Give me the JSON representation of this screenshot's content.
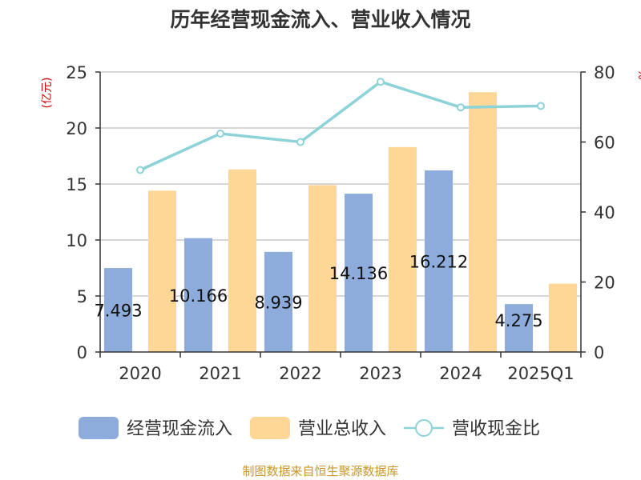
{
  "chart_data": {
    "type": "bar",
    "title": "历年经营现金流入、营业收入情况",
    "left_axis_unit": "(亿元)",
    "right_axis_unit": "%",
    "categories": [
      "2020",
      "2021",
      "2022",
      "2023",
      "2024",
      "2025Q1"
    ],
    "left_axis": {
      "min": 0,
      "max": 25,
      "ticks": [
        0,
        5,
        10,
        15,
        20,
        25
      ]
    },
    "right_axis": {
      "min": 0,
      "max": 80,
      "ticks": [
        0,
        20,
        40,
        60,
        80
      ]
    },
    "series": [
      {
        "name": "经营现金流入",
        "kind": "bar",
        "axis": "left",
        "color": "#8eacdb",
        "values": [
          7.493,
          10.166,
          8.939,
          14.136,
          16.212,
          4.275
        ],
        "labels": [
          "7.493",
          "10.166",
          "8.939",
          "14.136",
          "16.212",
          "4.275"
        ]
      },
      {
        "name": "营业总收入",
        "kind": "bar",
        "axis": "left",
        "color": "#fed797",
        "values": [
          14.4,
          16.3,
          14.9,
          18.3,
          23.2,
          6.1
        ]
      },
      {
        "name": "营收现金比",
        "kind": "line",
        "axis": "right",
        "color": "#8bd3d8",
        "values": [
          52.0,
          62.4,
          60.0,
          77.2,
          69.9,
          70.3
        ]
      }
    ],
    "legend_position": "bottom",
    "grid": true
  },
  "footer": {
    "source": "制图数据来自恒生聚源数据库"
  }
}
